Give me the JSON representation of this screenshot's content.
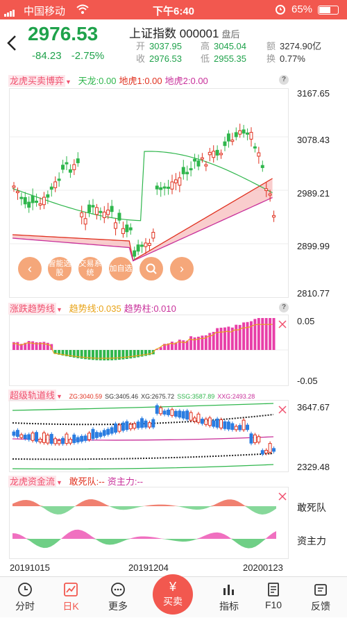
{
  "status_bar": {
    "carrier": "中国移动",
    "time": "下午6:40",
    "battery": "65%"
  },
  "header": {
    "price": "2976.53",
    "change": "-84.23",
    "change_pct": "-2.75%",
    "title": "上证指数 000001",
    "title_tag": "盘后",
    "open_label": "开",
    "open": "3037.95",
    "close_label": "收",
    "close": "2976.53",
    "high_label": "高",
    "high": "3045.04",
    "low_label": "低",
    "low": "2955.35",
    "amount_label": "额",
    "amount": "3274.90亿",
    "turnover_label": "换",
    "turnover": "0.77%"
  },
  "panel1": {
    "name": "龙虎买卖博弈",
    "legend": [
      {
        "text": "天龙:0.00",
        "color": "#2fb64c"
      },
      {
        "text": "地虎1:0.00",
        "color": "#e0301e"
      },
      {
        "text": "地虎2:0.00",
        "color": "#c82f9a"
      }
    ],
    "axis": [
      "3167.65",
      "3078.43",
      "2989.21",
      "2899.99",
      "2810.77"
    ]
  },
  "panel2": {
    "name": "涨跌趋势线",
    "legend": [
      {
        "text": "趋势线:0.035",
        "color": "#e8a317"
      },
      {
        "text": "趋势柱:0.010",
        "color": "#c82f9a"
      }
    ],
    "axis": [
      "0.05",
      "-0.05"
    ]
  },
  "panel3": {
    "name": "超级轨道线",
    "legend": [
      {
        "text": "ZG:3040.59",
        "color": "#e0301e"
      },
      {
        "text": "SG:3405.46",
        "color": "#333333"
      },
      {
        "text": "XG:2675.72",
        "color": "#333333"
      },
      {
        "text": "SSG:3587.89",
        "color": "#2fb64c"
      },
      {
        "text": "XXG:2493.28",
        "color": "#c82f9a"
      }
    ],
    "axis": [
      "3647.67",
      "2329.48"
    ]
  },
  "panel4": {
    "name": "龙虎资金流",
    "legend": [
      {
        "text": "敢死队:--",
        "color": "#e0301e"
      },
      {
        "text": "资主力:--",
        "color": "#c82f9a"
      }
    ],
    "labels": [
      "敢死队",
      "资主力"
    ]
  },
  "float_buttons": [
    "智能选股",
    "交易系统",
    "加自选"
  ],
  "dates": [
    "20191015",
    "20191204",
    "20200123"
  ],
  "nav": [
    "分时",
    "日K",
    "更多",
    "买卖",
    "指标",
    "F10",
    "反馈"
  ],
  "chart_data": {
    "type": "candlestick",
    "series": [],
    "ylim": [
      2810.77,
      3167.65
    ],
    "x": [
      "20191015",
      "20191204",
      "20200123"
    ]
  },
  "colors": {
    "up": "#e0301e",
    "down": "#2fb64c",
    "brand": "#f2584f"
  }
}
